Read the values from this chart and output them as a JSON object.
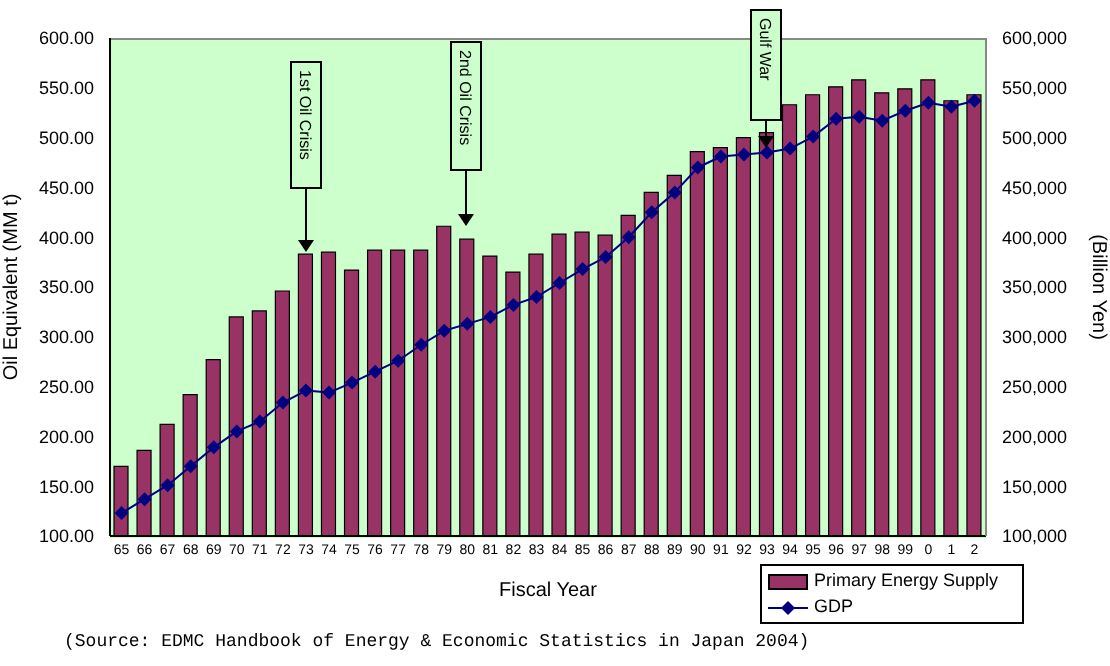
{
  "chart_data": {
    "type": "bar",
    "xlabel": "Fiscal Year",
    "ylabel": "Oil Equivalent (MM t)",
    "y2label": "(Billion Yen)",
    "categories": [
      "65",
      "66",
      "67",
      "68",
      "69",
      "70",
      "71",
      "72",
      "73",
      "74",
      "75",
      "76",
      "77",
      "78",
      "79",
      "80",
      "81",
      "82",
      "83",
      "84",
      "85",
      "86",
      "87",
      "88",
      "89",
      "90",
      "91",
      "92",
      "93",
      "94",
      "95",
      "96",
      "97",
      "98",
      "99",
      "0",
      "1",
      "2"
    ],
    "series": [
      {
        "name": "Primary Energy Supply",
        "color": "#993366",
        "values": [
          170,
          186,
          212,
          242,
          277,
          320,
          326,
          346,
          383,
          385,
          367,
          387,
          387,
          387,
          411,
          398,
          381,
          365,
          383,
          403,
          405,
          402,
          422,
          445,
          462,
          486,
          490,
          500,
          505,
          533,
          543,
          551,
          558,
          545,
          549,
          558,
          537,
          543
        ]
      },
      {
        "name": "GDP",
        "type": "line",
        "axis": "y2",
        "color": "#000080",
        "values": [
          123000,
          137000,
          151000,
          170000,
          189000,
          205000,
          215000,
          234000,
          246000,
          244000,
          254000,
          265000,
          276000,
          292000,
          306000,
          313000,
          320000,
          332000,
          340000,
          354000,
          368000,
          380000,
          400000,
          425000,
          445000,
          470000,
          481000,
          483000,
          485000,
          489000,
          501000,
          519000,
          521000,
          517000,
          527000,
          535000,
          531000,
          537000
        ]
      }
    ],
    "ylim": [
      100,
      600
    ],
    "yticks": [
      {
        "value": 100,
        "label": "100.00"
      },
      {
        "value": 150,
        "label": "150.00"
      },
      {
        "value": 200,
        "label": "200.00"
      },
      {
        "value": 250,
        "label": "250.00"
      },
      {
        "value": 300,
        "label": "300.00"
      },
      {
        "value": 350,
        "label": "350.00"
      },
      {
        "value": 400,
        "label": "400.00"
      },
      {
        "value": 450,
        "label": "450.00"
      },
      {
        "value": 500,
        "label": "500.00"
      },
      {
        "value": 550,
        "label": "550.00"
      },
      {
        "value": 600,
        "label": "600.00"
      }
    ],
    "y2lim": [
      100000,
      600000
    ],
    "y2ticks": [
      {
        "value": 100000,
        "label": "100,000"
      },
      {
        "value": 150000,
        "label": "150,000"
      },
      {
        "value": 200000,
        "label": "200,000"
      },
      {
        "value": 250000,
        "label": "250,000"
      },
      {
        "value": 300000,
        "label": "300,000"
      },
      {
        "value": 350000,
        "label": "350,000"
      },
      {
        "value": 400000,
        "label": "400,000"
      },
      {
        "value": 450000,
        "label": "450,000"
      },
      {
        "value": 500000,
        "label": "500,000"
      },
      {
        "value": 550000,
        "label": "550,000"
      },
      {
        "value": 600000,
        "label": "600,000"
      }
    ],
    "marker": "diamond",
    "legend": "bottom right",
    "annotations": [
      "1st Oil Crisis",
      "2nd Oil Crisis",
      "Gulf War",
      "(Source: EDMC Handbook of Energy & Economic Statistics in Japan 2004)"
    ]
  }
}
